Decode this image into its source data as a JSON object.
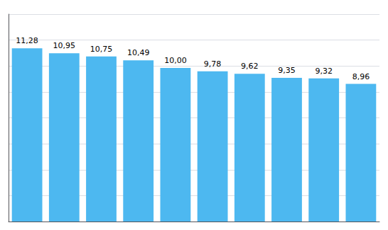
{
  "chart_data": {
    "type": "bar",
    "categories": [
      null,
      null,
      null,
      null,
      null,
      null,
      null,
      null,
      null,
      null
    ],
    "values": [
      11.28,
      10.95,
      10.75,
      10.49,
      10.0,
      9.78,
      9.62,
      9.35,
      9.32,
      8.96
    ],
    "value_labels": [
      "11,28",
      "10,95",
      "10,75",
      "10,49",
      "10,00",
      "9,78",
      "9,62",
      "9,35",
      "9,32",
      "8,96"
    ],
    "data_labels": true,
    "color": "#4db8f0",
    "ylim": [
      0,
      13.5
    ],
    "yticks": [
      0,
      1.6875,
      3.375,
      5.0625,
      6.75,
      8.4375,
      10.125,
      11.8125,
      13.5
    ],
    "grid": true,
    "tick_labels": false
  }
}
